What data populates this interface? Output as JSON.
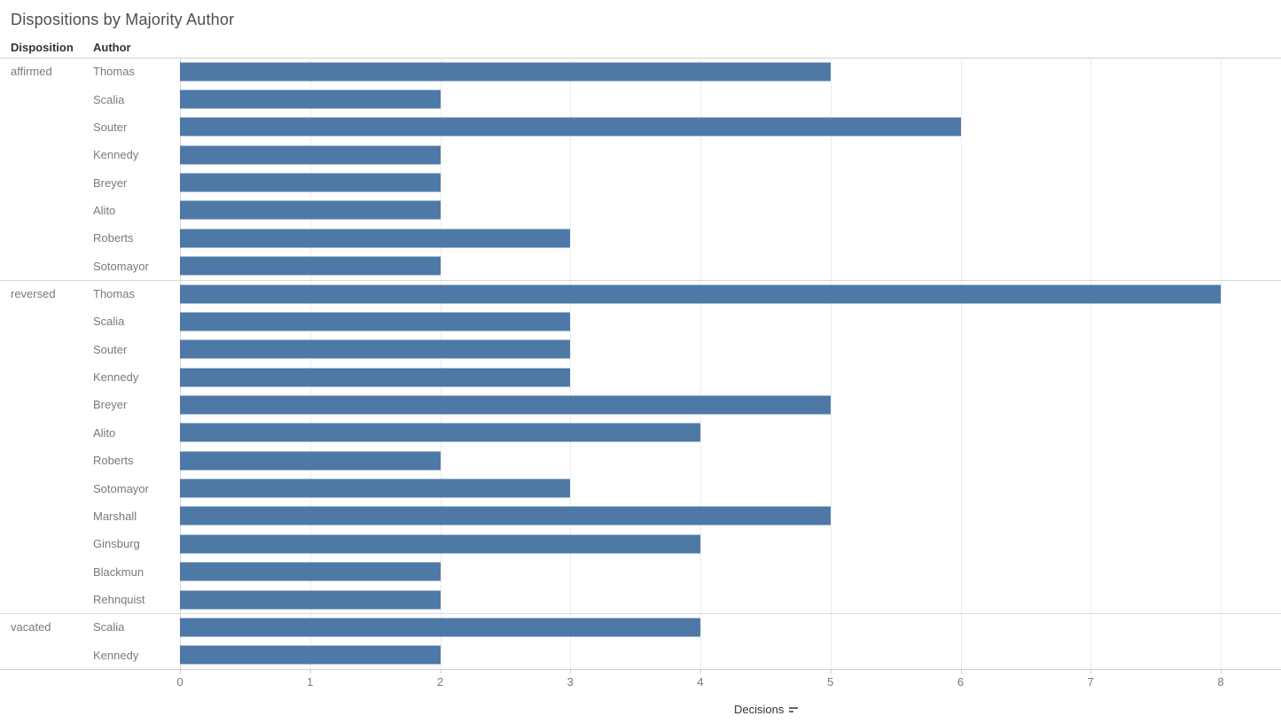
{
  "title": "Dispositions by Majority Author",
  "columns": {
    "disposition": "Disposition",
    "author": "Author"
  },
  "axis": {
    "label": "Decisions",
    "sort_icon": "sort-descending-icon",
    "ticks": [
      0,
      1,
      2,
      3,
      4,
      5,
      6,
      7,
      8
    ]
  },
  "colors": {
    "bar": "#4e79a7",
    "gridline": "#ececec",
    "zero_line": "#d7d7d7",
    "separator": "#d9d9d9",
    "title_text": "#4e4e4e",
    "header_text": "#333333",
    "label_text": "#7a7a7a"
  },
  "chart_data": {
    "type": "bar",
    "orientation": "horizontal",
    "title": "Dispositions by Majority Author",
    "xlabel": "Decisions",
    "ylabel": "",
    "xlim": [
      0,
      8
    ],
    "grid": true,
    "groups": [
      {
        "disposition": "affirmed",
        "rows": [
          {
            "author": "Thomas",
            "value": 5
          },
          {
            "author": "Scalia",
            "value": 2
          },
          {
            "author": "Souter",
            "value": 6
          },
          {
            "author": "Kennedy",
            "value": 2
          },
          {
            "author": "Breyer",
            "value": 2
          },
          {
            "author": "Alito",
            "value": 2
          },
          {
            "author": "Roberts",
            "value": 3
          },
          {
            "author": "Sotomayor",
            "value": 2
          }
        ]
      },
      {
        "disposition": "reversed",
        "rows": [
          {
            "author": "Thomas",
            "value": 8
          },
          {
            "author": "Scalia",
            "value": 3
          },
          {
            "author": "Souter",
            "value": 3
          },
          {
            "author": "Kennedy",
            "value": 3
          },
          {
            "author": "Breyer",
            "value": 5
          },
          {
            "author": "Alito",
            "value": 4
          },
          {
            "author": "Roberts",
            "value": 2
          },
          {
            "author": "Sotomayor",
            "value": 3
          },
          {
            "author": "Marshall",
            "value": 5
          },
          {
            "author": "Ginsburg",
            "value": 4
          },
          {
            "author": "Blackmun",
            "value": 2
          },
          {
            "author": "Rehnquist",
            "value": 2
          }
        ]
      },
      {
        "disposition": "vacated",
        "rows": [
          {
            "author": "Scalia",
            "value": 4
          },
          {
            "author": "Kennedy",
            "value": 2
          }
        ]
      }
    ]
  }
}
